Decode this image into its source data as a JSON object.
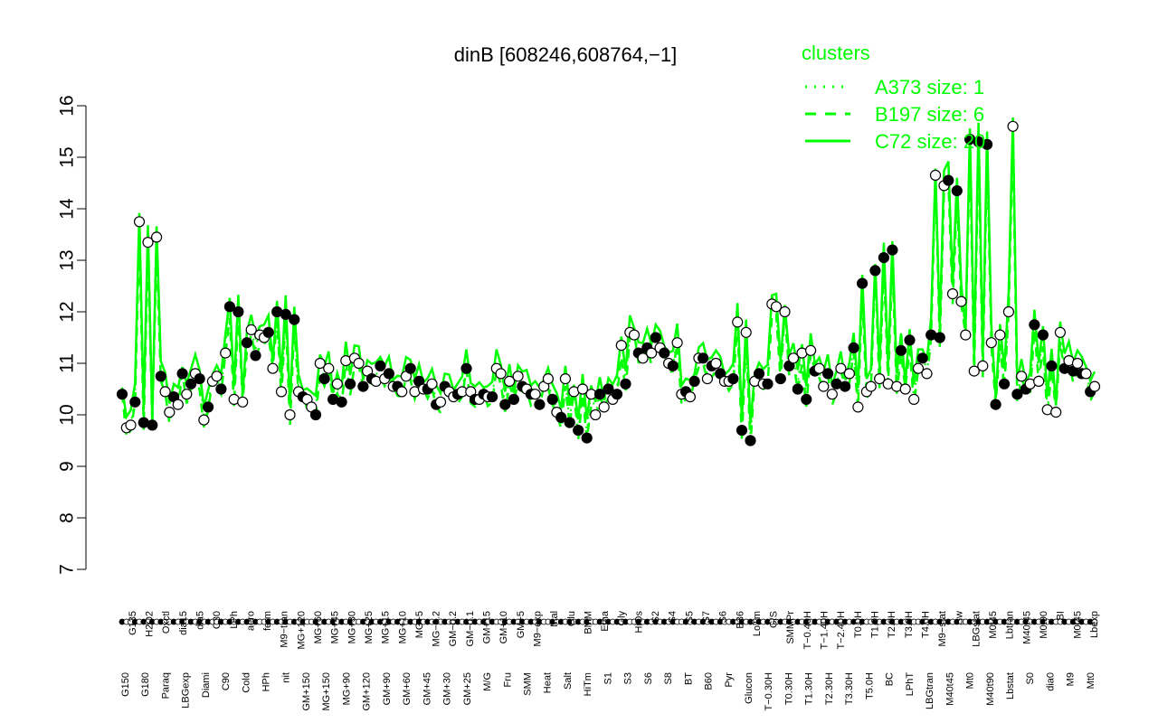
{
  "chart_data": {
    "type": "line",
    "title": "dinB [608246,608764,−1]",
    "xlabel": "",
    "ylabel": "",
    "ylim": [
      7,
      16
    ],
    "yticks": [
      7,
      8,
      9,
      10,
      11,
      12,
      13,
      14,
      15,
      16
    ],
    "grid": false,
    "legend_position": "top-right",
    "legend": {
      "title": "clusters",
      "entries": [
        {
          "label": "A373 size: 1",
          "style": "dotted"
        },
        {
          "label": "B197 size: 6",
          "style": "dashed"
        },
        {
          "label": "C72 size: 20",
          "style": "solid"
        }
      ]
    },
    "colors": {
      "line": "#00ff00",
      "point_stroke": "#000000"
    },
    "x_labels_upper": [
      "G135",
      "H2O2",
      "Oxctl",
      "dia15",
      "dia5",
      "C30",
      "LPh",
      "aero",
      "ferm",
      "M9−tran",
      "MG+120",
      "MG+60",
      "MG+45",
      "MG+30",
      "MG+25",
      "MG+15",
      "MG+10",
      "MG+5",
      "MG−0.2",
      "GM−0.2",
      "GM−0.1",
      "GM+15",
      "GM+10",
      "GM+5",
      "M9−exp",
      "Mal",
      "Glu",
      "BMM",
      "Etha",
      "Gly",
      "HiOs",
      "S2",
      "S4",
      "S5",
      "S7",
      "S6",
      "B36",
      "LoTm",
      "G/S",
      "SMMPr",
      "T−0.40H",
      "T−1.40H",
      "T−2.40H",
      "T0.0H",
      "T1.0H",
      "T2.0H",
      "T3.0H",
      "T4.0H",
      "M9−stat",
      "Sw",
      "LBGstat",
      "M0t45",
      "Lbtran",
      "M40t45",
      "M0t90",
      "BI",
      "M0t45",
      "Lbexp"
    ],
    "x_labels_lower": [
      "G150",
      "G180",
      "Paraq",
      "LBGexp",
      "Diami",
      "C90",
      "Cold",
      "HPh",
      "nit",
      "GM+150",
      "MG+150",
      "MG+90",
      "GM+120",
      "GM+90",
      "GM+60",
      "GM+45",
      "GM+30",
      "GM+25",
      "M/G",
      "Fru",
      "SMM",
      "Heat",
      "Salt",
      "HiTm",
      "S1",
      "S3",
      "S6",
      "S8",
      "BT",
      "B60",
      "Pyr",
      "Glucon",
      "T−0.30H",
      "T0.30H",
      "T1.30H",
      "T2.30H",
      "T3.30H",
      "T5.0H",
      "BC",
      "LPhT",
      "LBGtran",
      "M40t45",
      "Mt0",
      "M40t90",
      "Lbstat",
      "S0",
      "dia0",
      "M9",
      "Mt0"
    ],
    "series": [
      {
        "style": "points",
        "filled_values": [
          10.4,
          10.25,
          9.85,
          9.8,
          10.75,
          10.35,
          10.8,
          10.6,
          10.7,
          10.15,
          10.5,
          12.1,
          12.0,
          11.4,
          11.15,
          11.6,
          12.0,
          11.95,
          11.85,
          10.35,
          10.0,
          10.7,
          10.3,
          10.25,
          10.6,
          10.55,
          10.7,
          10.95,
          10.8,
          10.55,
          10.9,
          10.65,
          10.5,
          10.2,
          10.55,
          10.4,
          10.9,
          10.3,
          10.4,
          10.35,
          10.2,
          10.3,
          10.55,
          10.4,
          10.2,
          10.3,
          9.95,
          9.85,
          9.7,
          9.55,
          10.4,
          10.5,
          10.4,
          10.6,
          11.2,
          11.3,
          11.5,
          11.2,
          10.95,
          10.45,
          10.65,
          11.1,
          10.95,
          10.8,
          10.7,
          9.7,
          9.5,
          10.8,
          10.6,
          10.7,
          10.95,
          10.5,
          10.3,
          10.85,
          10.8,
          10.6,
          10.55,
          11.3,
          12.55,
          12.8,
          13.05,
          13.2,
          11.25,
          11.45,
          11.1,
          11.55,
          11.5,
          14.55,
          14.35,
          15.35,
          15.3,
          15.25,
          10.2,
          10.6,
          10.4,
          10.5,
          11.75,
          11.55,
          10.95,
          10.9,
          10.85,
          10.8,
          10.45
        ],
        "open_values": [
          9.75,
          9.8,
          13.75,
          13.35,
          13.45,
          10.45,
          10.05,
          10.2,
          10.4,
          10.8,
          9.9,
          10.65,
          10.75,
          11.2,
          10.3,
          10.25,
          11.65,
          11.55,
          11.5,
          10.9,
          10.45,
          10.0,
          10.45,
          10.3,
          10.15,
          11.0,
          10.9,
          10.6,
          11.05,
          11.1,
          11.0,
          10.85,
          10.65,
          10.7,
          10.55,
          10.45,
          10.75,
          10.45,
          10.5,
          10.6,
          10.25,
          10.45,
          10.35,
          10.45,
          10.45,
          10.3,
          10.35,
          10.9,
          10.8,
          10.65,
          10.75,
          10.5,
          10.4,
          10.55,
          10.7,
          10.05,
          10.7,
          10.45,
          10.5,
          10.4,
          10.0,
          10.15,
          10.3,
          11.35,
          11.6,
          11.55,
          11.1,
          11.2,
          11.3,
          11.0,
          11.4,
          10.4,
          10.35,
          11.1,
          10.7,
          11.0,
          10.65,
          10.65,
          11.8,
          11.6,
          10.65,
          10.6,
          12.15,
          12.1,
          12.0,
          11.1,
          11.2,
          11.25,
          10.9,
          10.55,
          10.4,
          10.9,
          10.8,
          10.15,
          10.45,
          10.55,
          10.7,
          10.6,
          10.55,
          10.5,
          10.3,
          10.9,
          10.8,
          14.65,
          14.45,
          12.35,
          12.2,
          11.55,
          10.85,
          10.95,
          11.4,
          11.55,
          12.0,
          15.6,
          10.75,
          10.6,
          10.65,
          10.1,
          10.05,
          11.6,
          11.05,
          11.0,
          10.8,
          10.55
        ]
      }
    ]
  }
}
